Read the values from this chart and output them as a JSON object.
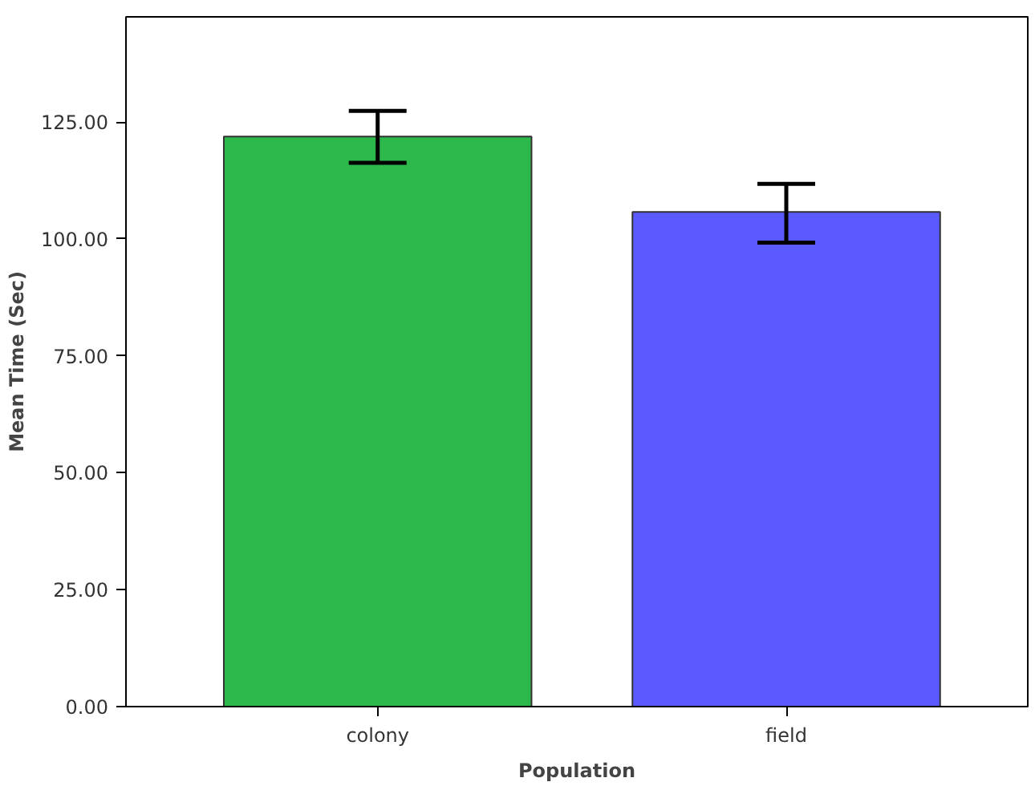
{
  "chart_data": {
    "type": "bar",
    "xlabel": "Population",
    "ylabel": "Mean Time (Sec)",
    "categories": [
      "colony",
      "field"
    ],
    "values": [
      121.9,
      105.8
    ],
    "colors": [
      "#2db84b",
      "#5a5aff"
    ],
    "errors": [
      [
        116.3,
        127.4
      ],
      [
        99.2,
        111.8
      ]
    ],
    "ylim": [
      0,
      147.5
    ],
    "yticks": [
      {
        "value": 0,
        "label": "0.00"
      },
      {
        "value": 25,
        "label": "25.00"
      },
      {
        "value": 50,
        "label": "50.00"
      },
      {
        "value": 75,
        "label": "75.00"
      },
      {
        "value": 100,
        "label": "100.00"
      },
      {
        "value": 125,
        "label": "125.00"
      }
    ],
    "grid": false
  }
}
